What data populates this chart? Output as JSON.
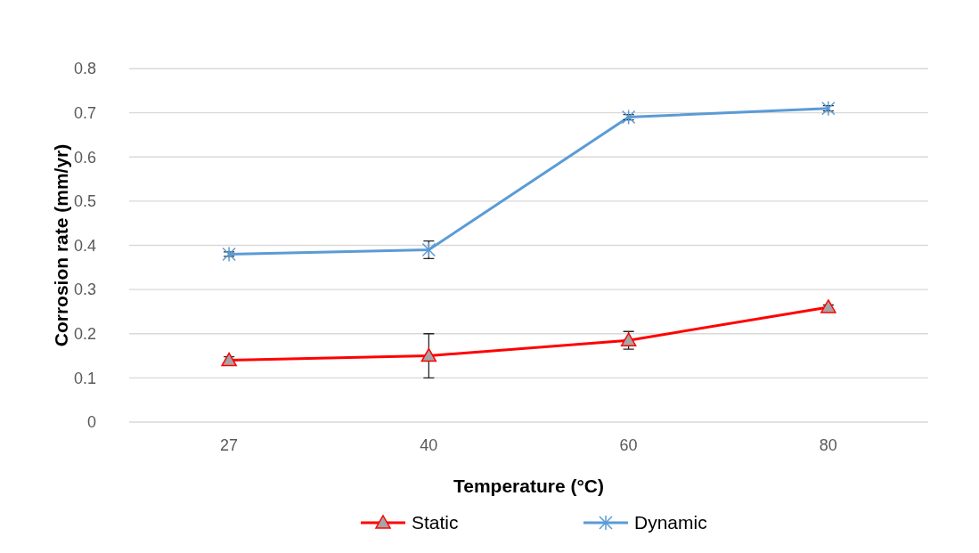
{
  "chart_data": {
    "type": "line",
    "xlabel": "Temperature (°C)",
    "ylabel": "Corrosion rate (mm/yr)",
    "categories": [
      "27",
      "40",
      "60",
      "80"
    ],
    "series": [
      {
        "name": "Static",
        "color": "#ff0000",
        "marker": "triangle",
        "values": [
          0.14,
          0.15,
          0.185,
          0.26
        ],
        "errors": [
          0.008,
          0.05,
          0.02,
          0.005
        ]
      },
      {
        "name": "Dynamic",
        "color": "#5b9bd5",
        "marker": "cross",
        "values": [
          0.38,
          0.39,
          0.69,
          0.71
        ],
        "errors": [
          0.005,
          0.02,
          0.006,
          0.006
        ]
      }
    ],
    "ylim": [
      0,
      0.8
    ],
    "yticks": [
      0,
      0.1,
      0.2,
      0.3,
      0.4,
      0.5,
      0.6,
      0.7,
      0.8
    ],
    "grid": "y",
    "legend": "bottom"
  }
}
